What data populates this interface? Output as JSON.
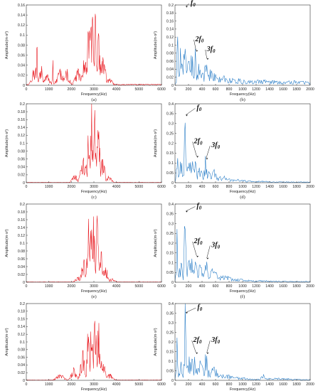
{
  "figure": {
    "background": "#ffffff"
  },
  "chart_data": [
    {
      "id": "a",
      "type": "line",
      "caption": "(a)",
      "color": "#e8141b",
      "xlabel": "Frequency(Hz)",
      "ylabel": "Amplitude(m·s²)",
      "xlim": [
        0,
        6000
      ],
      "ylim": [
        0,
        0.16
      ],
      "xticks": [
        0,
        1000,
        2000,
        3000,
        4000,
        5000,
        6000
      ],
      "yticks": [
        0,
        0.02,
        0.04,
        0.06,
        0.08,
        0.1,
        0.12,
        0.14,
        0.16
      ],
      "spectrum": {
        "step": 20,
        "peaks": [
          [
            380,
            0.035,
            120
          ],
          [
            470,
            0.098,
            15
          ],
          [
            650,
            0.04,
            70
          ],
          [
            900,
            0.02,
            120
          ],
          [
            1180,
            0.055,
            20
          ],
          [
            1500,
            0.03,
            120
          ],
          [
            1800,
            0.028,
            100
          ],
          [
            2300,
            0.028,
            130
          ],
          [
            2600,
            0.05,
            110
          ],
          [
            2780,
            0.12,
            60
          ],
          [
            2860,
            0.148,
            25
          ],
          [
            2950,
            0.12,
            80
          ],
          [
            3050,
            0.13,
            70
          ],
          [
            3200,
            0.1,
            80
          ],
          [
            3420,
            0.055,
            90
          ],
          [
            3700,
            0.012,
            120
          ]
        ],
        "noise": 0.3,
        "floor": 0.002,
        "seed": 11
      },
      "annotations": []
    },
    {
      "id": "b",
      "type": "line",
      "caption": "(b)",
      "color": "#1f77c4",
      "xlabel": "Frequency(Hz)",
      "ylabel": "Amplitude(m·s²)",
      "xlim": [
        0,
        2000
      ],
      "ylim": [
        0,
        0.2
      ],
      "xticks": [
        0,
        200,
        400,
        600,
        800,
        1000,
        1200,
        1400,
        1600,
        1800,
        2000
      ],
      "yticks": [
        0,
        0.02,
        0.04,
        0.06,
        0.08,
        0.1,
        0.12,
        0.14,
        0.16,
        0.18,
        0.2
      ],
      "spectrum": {
        "step": 10,
        "peaks": [
          [
            40,
            0.16,
            10
          ],
          [
            90,
            0.09,
            20
          ],
          [
            150,
            0.195,
            15
          ],
          [
            230,
            0.08,
            40
          ],
          [
            300,
            0.085,
            15
          ],
          [
            380,
            0.06,
            40
          ],
          [
            460,
            0.065,
            20
          ],
          [
            550,
            0.035,
            80
          ],
          [
            700,
            0.02,
            150
          ],
          [
            900,
            0.015,
            200
          ],
          [
            1300,
            0.012,
            300
          ],
          [
            1800,
            0.01,
            300
          ]
        ],
        "noise": 0.35,
        "floor": 0.006,
        "seed": 21
      },
      "annotations": [
        {
          "base": "f",
          "sub": "0",
          "x": 150,
          "y": 0.195,
          "tx": 230,
          "ty": 0.2
        },
        {
          "base": "2f",
          "sub": "0",
          "x": 300,
          "y": 0.085,
          "tx": 300,
          "ty": 0.11
        },
        {
          "base": "3f",
          "sub": "0",
          "x": 460,
          "y": 0.065,
          "tx": 470,
          "ty": 0.085
        }
      ]
    },
    {
      "id": "c",
      "type": "line",
      "caption": "(c)",
      "color": "#e8141b",
      "xlabel": "Frequency(Hz)",
      "ylabel": "Amplitude(m·s²)",
      "xlim": [
        0,
        6000
      ],
      "ylim": [
        0,
        0.2
      ],
      "xticks": [
        0,
        1000,
        2000,
        3000,
        4000,
        5000,
        6000
      ],
      "yticks": [
        0,
        0.02,
        0.04,
        0.06,
        0.08,
        0.1,
        0.12,
        0.14,
        0.16,
        0.18,
        0.2
      ],
      "spectrum": {
        "step": 20,
        "peaks": [
          [
            2150,
            0.02,
            100
          ],
          [
            2550,
            0.06,
            120
          ],
          [
            2780,
            0.15,
            50
          ],
          [
            2900,
            0.19,
            40
          ],
          [
            3050,
            0.17,
            60
          ],
          [
            3200,
            0.13,
            60
          ],
          [
            3400,
            0.06,
            80
          ],
          [
            3650,
            0.015,
            120
          ]
        ],
        "noise": 0.3,
        "floor": 0.001,
        "seed": 31
      },
      "annotations": []
    },
    {
      "id": "d",
      "type": "line",
      "caption": "(d)",
      "color": "#1f77c4",
      "xlabel": "Frequency(Hz)",
      "ylabel": "Amplitude(m·s²)",
      "xlim": [
        0,
        2000
      ],
      "ylim": [
        0,
        0.4
      ],
      "xticks": [
        0,
        200,
        400,
        600,
        800,
        1000,
        1200,
        1400,
        1600,
        1800,
        2000
      ],
      "yticks": [
        0,
        0.05,
        0.1,
        0.15,
        0.2,
        0.25,
        0.3,
        0.35,
        0.4
      ],
      "spectrum": {
        "step": 10,
        "peaks": [
          [
            30,
            0.24,
            10
          ],
          [
            90,
            0.1,
            20
          ],
          [
            150,
            0.34,
            12
          ],
          [
            230,
            0.12,
            40
          ],
          [
            310,
            0.13,
            15
          ],
          [
            380,
            0.08,
            40
          ],
          [
            450,
            0.12,
            20
          ],
          [
            550,
            0.06,
            80
          ],
          [
            700,
            0.03,
            150
          ],
          [
            900,
            0.015,
            200
          ],
          [
            1200,
            0.008,
            300
          ]
        ],
        "noise": 0.35,
        "floor": 0.004,
        "seed": 41
      },
      "annotations": [
        {
          "base": "f",
          "sub": "0",
          "x": 150,
          "y": 0.34,
          "tx": 320,
          "ty": 0.37
        },
        {
          "base": "2f",
          "sub": "0",
          "x": 310,
          "y": 0.13,
          "tx": 280,
          "ty": 0.2
        },
        {
          "base": "3f",
          "sub": "0",
          "x": 450,
          "y": 0.12,
          "tx": 540,
          "ty": 0.18
        }
      ]
    },
    {
      "id": "e",
      "type": "line",
      "caption": "(e)",
      "color": "#e8141b",
      "xlabel": "Frequency(Hz)",
      "ylabel": "Amplitude(m·s²)",
      "xlim": [
        0,
        6000
      ],
      "ylim": [
        0,
        0.2
      ],
      "xticks": [
        0,
        1000,
        2000,
        3000,
        4000,
        5000,
        6000
      ],
      "yticks": [
        0,
        0.02,
        0.04,
        0.06,
        0.08,
        0.1,
        0.12,
        0.14,
        0.16,
        0.18,
        0.2
      ],
      "spectrum": {
        "step": 20,
        "peaks": [
          [
            2300,
            0.015,
            100
          ],
          [
            2550,
            0.05,
            100
          ],
          [
            2750,
            0.15,
            50
          ],
          [
            2880,
            0.18,
            40
          ],
          [
            3000,
            0.16,
            50
          ],
          [
            3150,
            0.17,
            40
          ],
          [
            3300,
            0.11,
            60
          ],
          [
            3500,
            0.04,
            90
          ],
          [
            3800,
            0.008,
            120
          ]
        ],
        "noise": 0.3,
        "floor": 0.001,
        "seed": 51
      },
      "annotations": []
    },
    {
      "id": "f",
      "type": "line",
      "caption": "(f)",
      "color": "#1f77c4",
      "xlabel": "Frequency(Hz)",
      "ylabel": "Amplitude(m·s²)",
      "xlim": [
        0,
        2000
      ],
      "ylim": [
        0,
        0.4
      ],
      "xticks": [
        0,
        200,
        400,
        600,
        800,
        1000,
        1200,
        1400,
        1600,
        1800,
        2000
      ],
      "yticks": [
        0,
        0.05,
        0.1,
        0.15,
        0.2,
        0.25,
        0.3,
        0.35,
        0.4
      ],
      "spectrum": {
        "step": 10,
        "peaks": [
          [
            30,
            0.27,
            10
          ],
          [
            90,
            0.1,
            20
          ],
          [
            150,
            0.36,
            12
          ],
          [
            230,
            0.12,
            40
          ],
          [
            310,
            0.13,
            15
          ],
          [
            380,
            0.09,
            40
          ],
          [
            460,
            0.12,
            20
          ],
          [
            560,
            0.06,
            80
          ],
          [
            700,
            0.03,
            150
          ],
          [
            900,
            0.015,
            200
          ],
          [
            1250,
            0.008,
            300
          ]
        ],
        "noise": 0.35,
        "floor": 0.004,
        "seed": 61
      },
      "annotations": [
        {
          "base": "f",
          "sub": "0",
          "x": 150,
          "y": 0.36,
          "tx": 320,
          "ty": 0.38
        },
        {
          "base": "2f",
          "sub": "0",
          "x": 310,
          "y": 0.13,
          "tx": 280,
          "ty": 0.2
        },
        {
          "base": "3f",
          "sub": "0",
          "x": 460,
          "y": 0.12,
          "tx": 540,
          "ty": 0.18
        }
      ]
    },
    {
      "id": "g",
      "type": "line",
      "caption": "(g)",
      "color": "#e8141b",
      "xlabel": "Frequency(Hz)",
      "ylabel": "Amplitude(m·s²)",
      "xlim": [
        0,
        6000
      ],
      "ylim": [
        0,
        0.2
      ],
      "xticks": [
        0,
        1000,
        2000,
        3000,
        4000,
        5000,
        6000
      ],
      "yticks": [
        0,
        0.02,
        0.04,
        0.06,
        0.08,
        0.1,
        0.12,
        0.14,
        0.16,
        0.18,
        0.2
      ],
      "spectrum": {
        "step": 20,
        "peaks": [
          [
            1500,
            0.015,
            150
          ],
          [
            2100,
            0.03,
            100
          ],
          [
            2500,
            0.07,
            90
          ],
          [
            2750,
            0.16,
            50
          ],
          [
            2900,
            0.19,
            40
          ],
          [
            3050,
            0.15,
            60
          ],
          [
            3200,
            0.14,
            60
          ],
          [
            3400,
            0.06,
            80
          ],
          [
            3700,
            0.015,
            120
          ]
        ],
        "noise": 0.3,
        "floor": 0.001,
        "seed": 71
      },
      "annotations": []
    },
    {
      "id": "h",
      "type": "line",
      "caption": "(h)",
      "color": "#1f77c4",
      "xlabel": "Frequency(Hz)",
      "ylabel": "Amplitude(m·s²)",
      "xlim": [
        0,
        2000
      ],
      "ylim": [
        0,
        0.4
      ],
      "xticks": [
        0,
        200,
        400,
        600,
        800,
        1000,
        1200,
        1400,
        1600,
        1800,
        2000
      ],
      "yticks": [
        0,
        0.05,
        0.1,
        0.15,
        0.2,
        0.25,
        0.3,
        0.35,
        0.4
      ],
      "spectrum": {
        "step": 10,
        "peaks": [
          [
            30,
            0.28,
            10
          ],
          [
            90,
            0.1,
            20
          ],
          [
            150,
            0.35,
            12
          ],
          [
            230,
            0.12,
            40
          ],
          [
            300,
            0.14,
            15
          ],
          [
            380,
            0.09,
            40
          ],
          [
            460,
            0.14,
            20
          ],
          [
            560,
            0.06,
            80
          ],
          [
            700,
            0.03,
            150
          ],
          [
            900,
            0.015,
            200
          ],
          [
            1300,
            0.04,
            20
          ],
          [
            1500,
            0.01,
            300
          ]
        ],
        "noise": 0.35,
        "floor": 0.004,
        "seed": 81
      },
      "annotations": [
        {
          "base": "f",
          "sub": "0",
          "x": 150,
          "y": 0.35,
          "tx": 330,
          "ty": 0.37
        },
        {
          "base": "2f",
          "sub": "0",
          "x": 300,
          "y": 0.14,
          "tx": 270,
          "ty": 0.2
        },
        {
          "base": "3f",
          "sub": "0",
          "x": 460,
          "y": 0.14,
          "tx": 540,
          "ty": 0.2
        }
      ]
    }
  ]
}
